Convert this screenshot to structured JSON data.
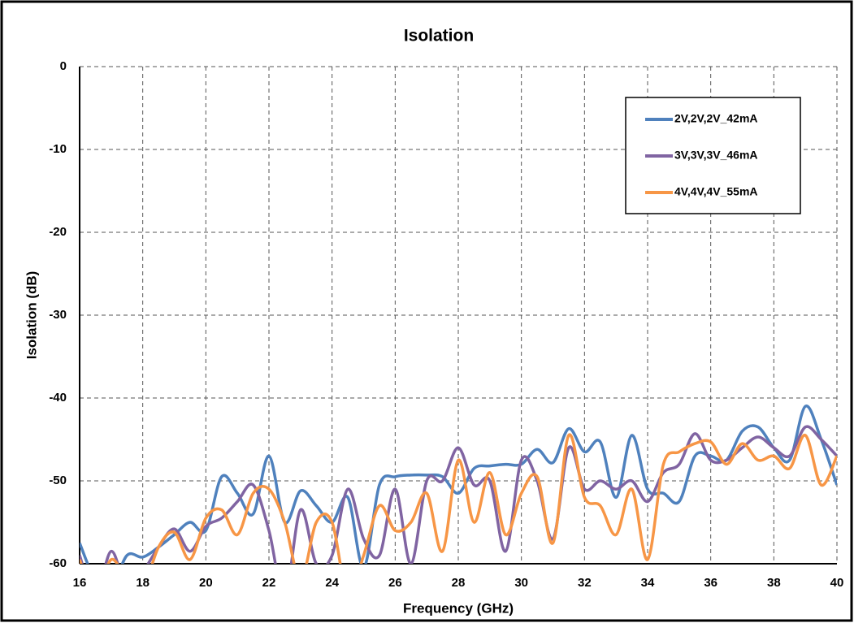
{
  "chart_data": {
    "type": "line",
    "title": "Isolation",
    "x_label": "Frequency (GHz)",
    "y_label": "Isolation (dB)",
    "x": [
      16,
      16.5,
      17,
      17.5,
      18,
      18.5,
      19,
      19.5,
      20,
      20.5,
      21,
      21.5,
      22,
      22.5,
      23,
      23.5,
      24,
      24.5,
      25,
      25.5,
      26,
      26.5,
      27,
      27.5,
      28,
      28.5,
      29,
      29.5,
      30,
      30.5,
      31,
      31.5,
      32,
      32.5,
      33,
      33.5,
      34,
      34.5,
      35,
      35.5,
      36,
      36.5,
      37,
      37.5,
      38,
      38.5,
      39,
      39.5,
      40
    ],
    "series": [
      {
        "name": "2V,2V,2V_42mA",
        "color": "#4f81bd",
        "values": [
          -57.5,
          -62,
          -63,
          -59,
          -59.2,
          -58,
          -56.5,
          -55,
          -56,
          -49.5,
          -51.5,
          -54,
          -47,
          -55,
          -51.2,
          -53,
          -55,
          -52,
          -60.5,
          -50.5,
          -49.5,
          -49.3,
          -49.3,
          -49.5,
          -51.5,
          -48.5,
          -48.2,
          -48,
          -48,
          -46.2,
          -47.8,
          -43.7,
          -46.5,
          -45.3,
          -52,
          -44.5,
          -51,
          -51.5,
          -52.5,
          -47,
          -47,
          -47.5,
          -44,
          -43.5,
          -46,
          -47.5,
          -41,
          -45,
          -50.5
        ]
      },
      {
        "name": "3V,3V,3V_46mA",
        "color": "#8064a2",
        "values": [
          -59,
          -64,
          -58.5,
          -63,
          -61,
          -58,
          -55.8,
          -58.5,
          -55.5,
          -54.5,
          -52.5,
          -50.5,
          -56,
          -64,
          -53.5,
          -60,
          -59,
          -51,
          -57,
          -59,
          -51,
          -60,
          -50,
          -50,
          -46,
          -50.5,
          -50,
          -58.5,
          -47.5,
          -50,
          -57,
          -46,
          -51,
          -50,
          -51,
          -50,
          -52.5,
          -49,
          -48,
          -44.3,
          -47.5,
          -47.5,
          -46,
          -44.7,
          -46,
          -47,
          -43.5,
          -45,
          -47
        ]
      },
      {
        "name": "4V,4V,4V_55mA",
        "color": "#f79646",
        "values": [
          -59.5,
          -64,
          -59.5,
          -62,
          -63,
          -58,
          -56.2,
          -59.5,
          -54.5,
          -53.5,
          -56.5,
          -51.5,
          -51,
          -55,
          -62,
          -55,
          -55,
          -64,
          -59,
          -53,
          -56,
          -55,
          -51.5,
          -58.5,
          -47.5,
          -55,
          -49,
          -56.5,
          -51.5,
          -49.5,
          -57.5,
          -44.5,
          -52,
          -53,
          -56.5,
          -51,
          -59.5,
          -48,
          -46.5,
          -45.5,
          -45.3,
          -48,
          -45.5,
          -47.5,
          -47,
          -48.5,
          -44.5,
          -50.5,
          -47
        ]
      }
    ],
    "xlim": [
      16,
      40
    ],
    "ylim": [
      -60,
      0
    ],
    "xticks": [
      16,
      18,
      20,
      22,
      24,
      26,
      28,
      30,
      32,
      34,
      36,
      38,
      40
    ],
    "yticks": [
      0,
      -10,
      -20,
      -30,
      -40,
      -50,
      -60
    ],
    "grid": true,
    "legend": "top-right"
  }
}
